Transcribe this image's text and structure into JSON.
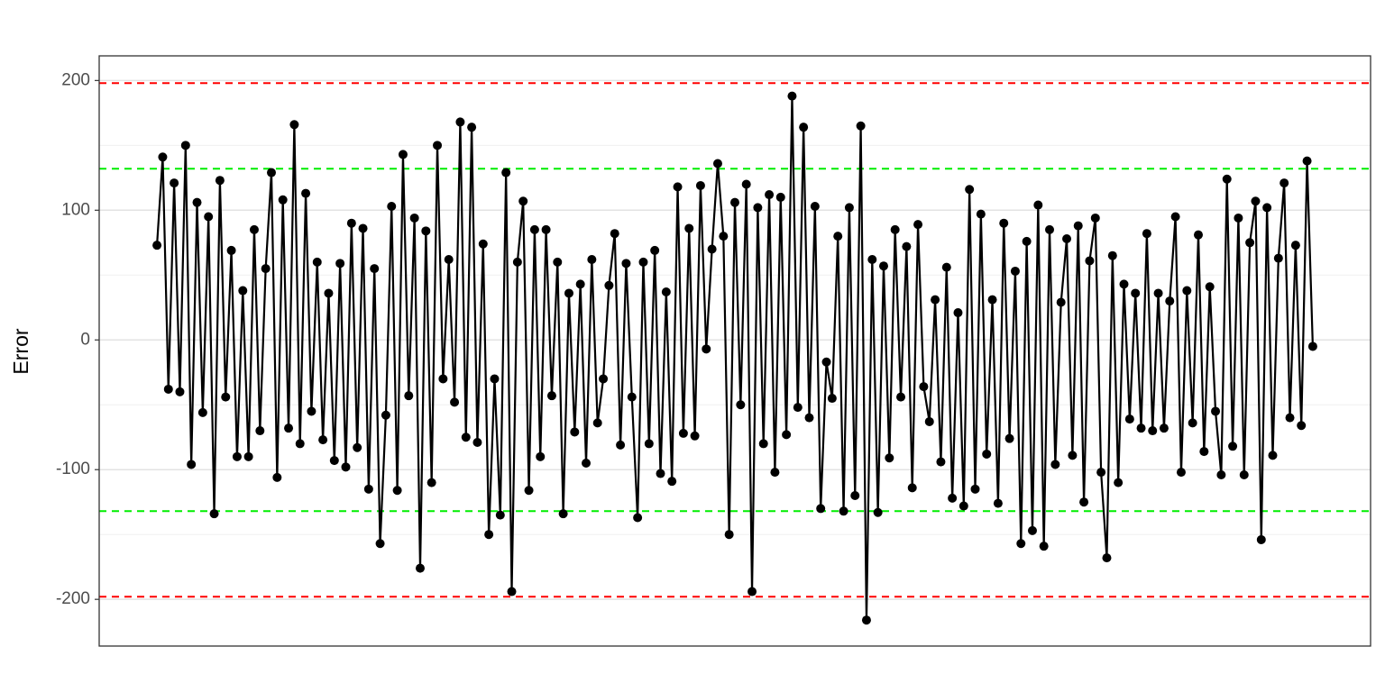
{
  "chart_data": {
    "type": "line",
    "y_label": "Error",
    "values": [
      73,
      141,
      -38,
      121,
      -40,
      150,
      -96,
      106,
      -56,
      95,
      -134,
      123,
      -44,
      69,
      -90,
      38,
      -90,
      85,
      -70,
      55,
      129,
      -106,
      108,
      -68,
      166,
      -80,
      113,
      -55,
      60,
      -77,
      36,
      -93,
      59,
      -98,
      90,
      -83,
      86,
      -115,
      55,
      -157,
      -58,
      103,
      -116,
      143,
      -43,
      94,
      -176,
      84,
      -110,
      150,
      -30,
      62,
      -48,
      168,
      -75,
      164,
      -79,
      74,
      -150,
      -30,
      -135,
      129,
      -194,
      60,
      107,
      -116,
      85,
      -90,
      85,
      -43,
      60,
      -134,
      36,
      -71,
      43,
      -95,
      62,
      -64,
      -30,
      42,
      82,
      -81,
      59,
      -44,
      -137,
      60,
      -80,
      69,
      -103,
      37,
      -109,
      118,
      -72,
      86,
      -74,
      119,
      -7,
      70,
      136,
      80,
      -150,
      106,
      -50,
      120,
      -194,
      102,
      -80,
      112,
      -102,
      110,
      -73,
      188,
      -52,
      164,
      -60,
      103,
      -130,
      -17,
      -45,
      80,
      -132,
      102,
      -120,
      165,
      -216,
      62,
      -133,
      57,
      -91,
      85,
      -44,
      72,
      -114,
      89,
      -36,
      -63,
      31,
      -94,
      56,
      -122,
      21,
      -128,
      116,
      -115,
      97,
      -88,
      31,
      -126,
      90,
      -76,
      53,
      -157,
      76,
      -147,
      104,
      -159,
      85,
      -96,
      29,
      78,
      -89,
      88,
      -125,
      61,
      94,
      -102,
      -168,
      65,
      -110,
      43,
      -61,
      36,
      -68,
      82,
      -70,
      36,
      -68,
      30,
      95,
      -102,
      38,
      -64,
      81,
      -86,
      41,
      -55,
      -104,
      124,
      -82,
      94,
      -104,
      75,
      107,
      -154,
      102,
      -89,
      63,
      121,
      -60,
      73,
      -66,
      138,
      -5
    ],
    "color": "#000000",
    "ylim": [
      -236,
      219
    ],
    "yticks": [
      -200,
      -100,
      0,
      100,
      200
    ],
    "minor_grid": [
      -150,
      -50,
      50,
      150
    ],
    "grid": true,
    "hlines": [
      {
        "value": 198,
        "color": "#ff0000"
      },
      {
        "value": -198,
        "color": "#ff0000"
      },
      {
        "value": 132,
        "color": "#00ee00"
      },
      {
        "value": -132,
        "color": "#00ee00"
      }
    ]
  }
}
